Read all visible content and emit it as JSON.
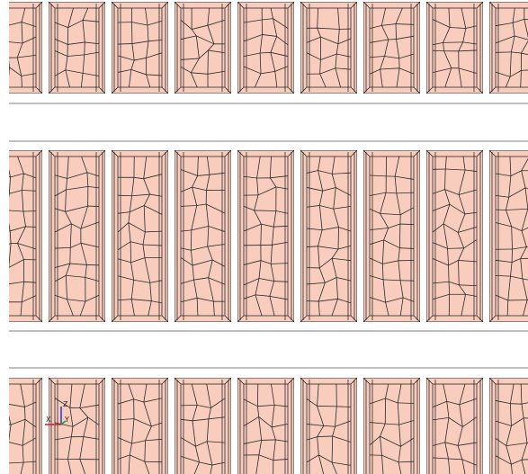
{
  "triad": {
    "labels": [
      "Z",
      "X",
      "Y"
    ]
  }
}
